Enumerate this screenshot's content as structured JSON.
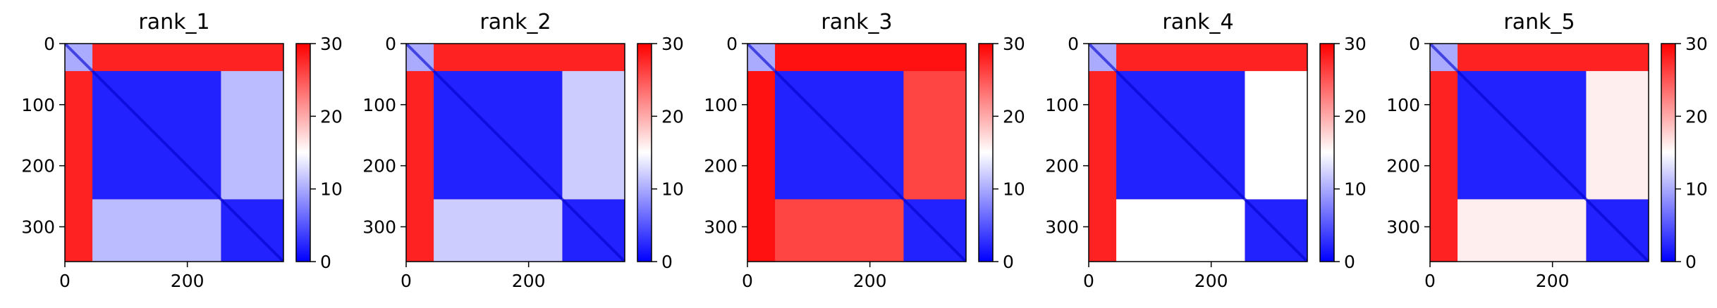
{
  "chart_data": [
    {
      "type": "heatmap",
      "title": "rank_1",
      "x_ticks": [
        0,
        200
      ],
      "y_ticks": [
        0,
        100,
        200,
        300
      ],
      "xlim": [
        0,
        357
      ],
      "ylim": [
        357,
        0
      ],
      "colorbar": {
        "ticks": [
          0,
          10,
          20,
          30
        ],
        "range": [
          0,
          30
        ],
        "colors": [
          "#0000ff",
          "#ffffff",
          "#ff0000"
        ]
      },
      "domain_boundaries": [
        45,
        255
      ],
      "offdiag_values": {
        "domain_ab": 11,
        "n_term": 28
      }
    },
    {
      "type": "heatmap",
      "title": "rank_2",
      "x_ticks": [
        0,
        200
      ],
      "y_ticks": [
        0,
        100,
        200,
        300
      ],
      "xlim": [
        0,
        357
      ],
      "ylim": [
        357,
        0
      ],
      "colorbar": {
        "ticks": [
          0,
          10,
          20,
          30
        ],
        "range": [
          0,
          30
        ],
        "colors": [
          "#0000ff",
          "#ffffff",
          "#ff0000"
        ]
      },
      "domain_boundaries": [
        45,
        255
      ],
      "offdiag_values": {
        "domain_ab": 12,
        "n_term": 28
      }
    },
    {
      "type": "heatmap",
      "title": "rank_3",
      "x_ticks": [
        0,
        200
      ],
      "y_ticks": [
        0,
        100,
        200,
        300
      ],
      "xlim": [
        0,
        357
      ],
      "ylim": [
        357,
        0
      ],
      "colorbar": {
        "ticks": [
          0,
          10,
          20,
          30
        ],
        "range": [
          0,
          30
        ],
        "colors": [
          "#0000ff",
          "#ffffff",
          "#ff0000"
        ]
      },
      "domain_boundaries": [
        45,
        255
      ],
      "offdiag_values": {
        "domain_ab": 26,
        "n_term": 29
      }
    },
    {
      "type": "heatmap",
      "title": "rank_4",
      "x_ticks": [
        0,
        200
      ],
      "y_ticks": [
        0,
        100,
        200,
        300
      ],
      "xlim": [
        0,
        357
      ],
      "ylim": [
        357,
        0
      ],
      "colorbar": {
        "ticks": [
          0,
          10,
          20,
          30
        ],
        "range": [
          0,
          30
        ],
        "colors": [
          "#0000ff",
          "#ffffff",
          "#ff0000"
        ]
      },
      "domain_boundaries": [
        45,
        255
      ],
      "offdiag_values": {
        "domain_ab": 15,
        "n_term": 28
      }
    },
    {
      "type": "heatmap",
      "title": "rank_5",
      "x_ticks": [
        0,
        200
      ],
      "y_ticks": [
        0,
        100,
        200,
        300
      ],
      "xlim": [
        0,
        357
      ],
      "ylim": [
        357,
        0
      ],
      "colorbar": {
        "ticks": [
          0,
          10,
          20,
          30
        ],
        "range": [
          0,
          30
        ],
        "colors": [
          "#0000ff",
          "#ffffff",
          "#ff0000"
        ]
      },
      "domain_boundaries": [
        45,
        255
      ],
      "offdiag_values": {
        "domain_ab": 16,
        "n_term": 28
      }
    }
  ]
}
